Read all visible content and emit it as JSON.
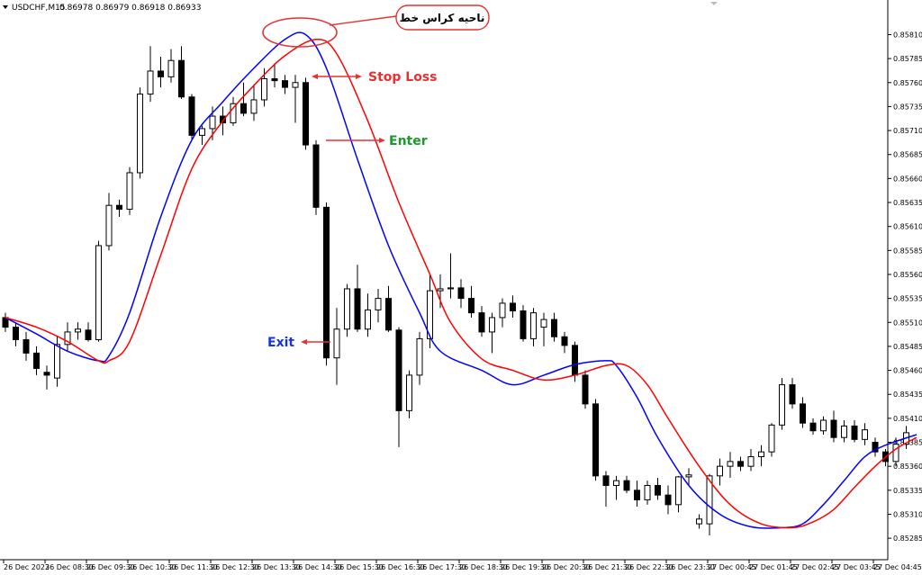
{
  "header": {
    "symbol": "USDCHF,M15",
    "ohlc": "0.86978 0.86979 0.86918 0.86933"
  },
  "colors": {
    "background": "#ffffff",
    "fast_ma": "#0000ff",
    "slow_ma": "#ff0000",
    "bull_candle_body": "#ffffff",
    "bear_candle_body": "#000000",
    "candle_outline": "#000000",
    "stop_loss": "#e83030",
    "enter": "#1a9a2a",
    "exit": "#1836d8",
    "annotation_arrow": "#e83030",
    "bubble_fill": "#ffffff",
    "bubble_border": "#e83030"
  },
  "annotations": {
    "crossover_zone": "ناحیه کراس خط",
    "stop_loss": "Stop Loss",
    "enter": "Enter",
    "exit": "Exit"
  },
  "chart_data": {
    "type": "candlestick",
    "ylim": [
      0.85272,
      0.85832
    ],
    "y_ticks": [
      "0.85810",
      "0.85785",
      "0.85760",
      "0.85735",
      "0.85710",
      "0.85685",
      "0.85660",
      "0.85635",
      "0.85610",
      "0.85585",
      "0.85560",
      "0.85535",
      "0.85510",
      "0.85485",
      "0.85460",
      "0.85435",
      "0.85410",
      "0.85385",
      "0.85360",
      "0.85335",
      "0.85310",
      "0.85285"
    ],
    "x_ticks": [
      "26 Dec 2023",
      "26 Dec 08:30",
      "26 Dec 09:30",
      "26 Dec 10:30",
      "26 Dec 11:30",
      "26 Dec 12:30",
      "26 Dec 13:30",
      "26 Dec 14:30",
      "26 Dec 15:30",
      "26 Dec 16:30",
      "26 Dec 17:30",
      "26 Dec 18:30",
      "26 Dec 19:30",
      "26 Dec 20:30",
      "26 Dec 21:30",
      "26 Dec 22:30",
      "26 Dec 23:30",
      "27 Dec 00:45",
      "27 Dec 01:45",
      "27 Dec 02:45",
      "27 Dec 03:45",
      "27 Dec 04:45"
    ],
    "candles": [
      {
        "o": 0.85515,
        "h": 0.8552,
        "l": 0.855,
        "c": 0.85505
      },
      {
        "o": 0.85505,
        "h": 0.8551,
        "l": 0.85485,
        "c": 0.85492
      },
      {
        "o": 0.85492,
        "h": 0.855,
        "l": 0.8547,
        "c": 0.85478
      },
      {
        "o": 0.85478,
        "h": 0.85485,
        "l": 0.85455,
        "c": 0.85462
      },
      {
        "o": 0.85458,
        "h": 0.85465,
        "l": 0.8544,
        "c": 0.85455
      },
      {
        "o": 0.85452,
        "h": 0.85495,
        "l": 0.85443,
        "c": 0.85487
      },
      {
        "o": 0.85487,
        "h": 0.8551,
        "l": 0.8548,
        "c": 0.855
      },
      {
        "o": 0.855,
        "h": 0.8551,
        "l": 0.85492,
        "c": 0.85503
      },
      {
        "o": 0.85502,
        "h": 0.8551,
        "l": 0.8549,
        "c": 0.85492
      },
      {
        "o": 0.85492,
        "h": 0.85595,
        "l": 0.8549,
        "c": 0.8559
      },
      {
        "o": 0.8559,
        "h": 0.85645,
        "l": 0.85585,
        "c": 0.85632
      },
      {
        "o": 0.85632,
        "h": 0.85638,
        "l": 0.8562,
        "c": 0.85628
      },
      {
        "o": 0.85628,
        "h": 0.85672,
        "l": 0.85622,
        "c": 0.85666
      },
      {
        "o": 0.85666,
        "h": 0.85755,
        "l": 0.8566,
        "c": 0.85748
      },
      {
        "o": 0.85748,
        "h": 0.85798,
        "l": 0.8574,
        "c": 0.85772
      },
      {
        "o": 0.85772,
        "h": 0.85787,
        "l": 0.85755,
        "c": 0.85766
      },
      {
        "o": 0.85766,
        "h": 0.85795,
        "l": 0.8576,
        "c": 0.85783
      },
      {
        "o": 0.85783,
        "h": 0.85798,
        "l": 0.85743,
        "c": 0.85745
      },
      {
        "o": 0.85745,
        "h": 0.85748,
        "l": 0.857,
        "c": 0.85705
      },
      {
        "o": 0.85705,
        "h": 0.85715,
        "l": 0.85695,
        "c": 0.85712
      },
      {
        "o": 0.85712,
        "h": 0.85735,
        "l": 0.857,
        "c": 0.85725
      },
      {
        "o": 0.85725,
        "h": 0.85735,
        "l": 0.85705,
        "c": 0.85718
      },
      {
        "o": 0.85718,
        "h": 0.85745,
        "l": 0.85715,
        "c": 0.85738
      },
      {
        "o": 0.85738,
        "h": 0.8576,
        "l": 0.85725,
        "c": 0.85728
      },
      {
        "o": 0.85728,
        "h": 0.85758,
        "l": 0.8572,
        "c": 0.85742
      },
      {
        "o": 0.85742,
        "h": 0.85775,
        "l": 0.85735,
        "c": 0.85764
      },
      {
        "o": 0.85764,
        "h": 0.8578,
        "l": 0.85755,
        "c": 0.85762
      },
      {
        "o": 0.85762,
        "h": 0.85768,
        "l": 0.85748,
        "c": 0.85755
      },
      {
        "o": 0.85755,
        "h": 0.85768,
        "l": 0.85718,
        "c": 0.8576
      },
      {
        "o": 0.8576,
        "h": 0.85765,
        "l": 0.8569,
        "c": 0.85695
      },
      {
        "o": 0.85695,
        "h": 0.857,
        "l": 0.85622,
        "c": 0.8563
      },
      {
        "o": 0.8563,
        "h": 0.85635,
        "l": 0.85465,
        "c": 0.85473
      },
      {
        "o": 0.85473,
        "h": 0.85525,
        "l": 0.85445,
        "c": 0.85503
      },
      {
        "o": 0.85503,
        "h": 0.8555,
        "l": 0.85495,
        "c": 0.85545
      },
      {
        "o": 0.85545,
        "h": 0.8557,
        "l": 0.855,
        "c": 0.85503
      },
      {
        "o": 0.85503,
        "h": 0.8554,
        "l": 0.85495,
        "c": 0.85523
      },
      {
        "o": 0.85523,
        "h": 0.85545,
        "l": 0.8551,
        "c": 0.85535
      },
      {
        "o": 0.85535,
        "h": 0.85548,
        "l": 0.855,
        "c": 0.85502
      },
      {
        "o": 0.85502,
        "h": 0.85505,
        "l": 0.8538,
        "c": 0.85418
      },
      {
        "o": 0.85418,
        "h": 0.8546,
        "l": 0.8541,
        "c": 0.85455
      },
      {
        "o": 0.85455,
        "h": 0.855,
        "l": 0.85445,
        "c": 0.85493
      },
      {
        "o": 0.85493,
        "h": 0.8556,
        "l": 0.85483,
        "c": 0.85543
      },
      {
        "o": 0.85543,
        "h": 0.8556,
        "l": 0.85525,
        "c": 0.85545
      },
      {
        "o": 0.85545,
        "h": 0.85582,
        "l": 0.85535,
        "c": 0.85546
      },
      {
        "o": 0.85546,
        "h": 0.85555,
        "l": 0.85525,
        "c": 0.85535
      },
      {
        "o": 0.85535,
        "h": 0.85548,
        "l": 0.85515,
        "c": 0.8552
      },
      {
        "o": 0.8552,
        "h": 0.85527,
        "l": 0.85495,
        "c": 0.855
      },
      {
        "o": 0.855,
        "h": 0.8552,
        "l": 0.85478,
        "c": 0.85515
      },
      {
        "o": 0.85515,
        "h": 0.85535,
        "l": 0.85505,
        "c": 0.8553
      },
      {
        "o": 0.8553,
        "h": 0.85538,
        "l": 0.85515,
        "c": 0.85522
      },
      {
        "o": 0.85522,
        "h": 0.85528,
        "l": 0.8549,
        "c": 0.85493
      },
      {
        "o": 0.85493,
        "h": 0.85525,
        "l": 0.85485,
        "c": 0.8552
      },
      {
        "o": 0.85505,
        "h": 0.8552,
        "l": 0.85485,
        "c": 0.85513
      },
      {
        "o": 0.85513,
        "h": 0.8552,
        "l": 0.8549,
        "c": 0.85495
      },
      {
        "o": 0.85495,
        "h": 0.855,
        "l": 0.85478,
        "c": 0.85486
      },
      {
        "o": 0.85486,
        "h": 0.8549,
        "l": 0.85448,
        "c": 0.85455
      },
      {
        "o": 0.85455,
        "h": 0.8546,
        "l": 0.8542,
        "c": 0.85425
      },
      {
        "o": 0.85425,
        "h": 0.8543,
        "l": 0.85345,
        "c": 0.8535
      },
      {
        "o": 0.8535,
        "h": 0.85355,
        "l": 0.85318,
        "c": 0.8534
      },
      {
        "o": 0.8534,
        "h": 0.8535,
        "l": 0.85325,
        "c": 0.85345
      },
      {
        "o": 0.85345,
        "h": 0.8535,
        "l": 0.85332,
        "c": 0.85335
      },
      {
        "o": 0.85335,
        "h": 0.85345,
        "l": 0.85318,
        "c": 0.85325
      },
      {
        "o": 0.85325,
        "h": 0.85345,
        "l": 0.8532,
        "c": 0.8534
      },
      {
        "o": 0.8534,
        "h": 0.85348,
        "l": 0.85325,
        "c": 0.8533
      },
      {
        "o": 0.8533,
        "h": 0.8534,
        "l": 0.8531,
        "c": 0.8532
      },
      {
        "o": 0.8532,
        "h": 0.8535,
        "l": 0.85312,
        "c": 0.85349
      },
      {
        "o": 0.85349,
        "h": 0.85358,
        "l": 0.8534,
        "c": 0.85351
      },
      {
        "o": 0.853,
        "h": 0.8531,
        "l": 0.85295,
        "c": 0.85305
      },
      {
        "o": 0.853,
        "h": 0.85352,
        "l": 0.85288,
        "c": 0.8535
      },
      {
        "o": 0.8535,
        "h": 0.85368,
        "l": 0.8534,
        "c": 0.8536
      },
      {
        "o": 0.8536,
        "h": 0.85375,
        "l": 0.85348,
        "c": 0.85365
      },
      {
        "o": 0.85365,
        "h": 0.8537,
        "l": 0.85355,
        "c": 0.8536
      },
      {
        "o": 0.8536,
        "h": 0.85378,
        "l": 0.85355,
        "c": 0.8537
      },
      {
        "o": 0.8537,
        "h": 0.85382,
        "l": 0.8536,
        "c": 0.85375
      },
      {
        "o": 0.85375,
        "h": 0.85405,
        "l": 0.8537,
        "c": 0.85403
      },
      {
        "o": 0.85403,
        "h": 0.85452,
        "l": 0.85398,
        "c": 0.85445
      },
      {
        "o": 0.85445,
        "h": 0.85452,
        "l": 0.8542,
        "c": 0.85425
      },
      {
        "o": 0.85425,
        "h": 0.85432,
        "l": 0.854,
        "c": 0.85405
      },
      {
        "o": 0.85405,
        "h": 0.8541,
        "l": 0.85393,
        "c": 0.85397
      },
      {
        "o": 0.85397,
        "h": 0.85412,
        "l": 0.85393,
        "c": 0.85408
      },
      {
        "o": 0.85408,
        "h": 0.85418,
        "l": 0.85385,
        "c": 0.8539
      },
      {
        "o": 0.8539,
        "h": 0.85408,
        "l": 0.85385,
        "c": 0.85402
      },
      {
        "o": 0.85402,
        "h": 0.85408,
        "l": 0.85385,
        "c": 0.85388
      },
      {
        "o": 0.85388,
        "h": 0.85405,
        "l": 0.85382,
        "c": 0.85398
      },
      {
        "o": 0.85385,
        "h": 0.8539,
        "l": 0.8537,
        "c": 0.85375
      },
      {
        "o": 0.85375,
        "h": 0.85378,
        "l": 0.8536,
        "c": 0.85365
      },
      {
        "o": 0.85365,
        "h": 0.8539,
        "l": 0.8536,
        "c": 0.85383
      },
      {
        "o": 0.85383,
        "h": 0.85402,
        "l": 0.85378,
        "c": 0.85395
      }
    ],
    "series": [
      {
        "color_key": "fast_ma",
        "values": [
          [
            0,
            0.85515
          ],
          [
            3,
            0.85498
          ],
          [
            6,
            0.8548
          ],
          [
            9,
            0.8547
          ],
          [
            10,
            0.85475
          ],
          [
            12,
            0.8552
          ],
          [
            15,
            0.8562
          ],
          [
            18,
            0.857
          ],
          [
            21,
            0.8574
          ],
          [
            24,
            0.85775
          ],
          [
            27,
            0.85805
          ],
          [
            29,
            0.8581
          ],
          [
            31,
            0.85775
          ],
          [
            34,
            0.8568
          ],
          [
            37,
            0.8559
          ],
          [
            40,
            0.8552
          ],
          [
            42,
            0.8548
          ],
          [
            46,
            0.8546
          ],
          [
            49,
            0.85445
          ],
          [
            52,
            0.85455
          ],
          [
            55,
            0.85466
          ],
          [
            58,
            0.8547
          ],
          [
            59,
            0.85465
          ],
          [
            61,
            0.85432
          ],
          [
            63,
            0.8539
          ],
          [
            66,
            0.8534
          ],
          [
            69,
            0.8531
          ],
          [
            72,
            0.85297
          ],
          [
            75,
            0.85296
          ],
          [
            77,
            0.853
          ],
          [
            79,
            0.8532
          ],
          [
            81,
            0.85345
          ],
          [
            83,
            0.8537
          ],
          [
            85,
            0.85382
          ],
          [
            88,
            0.85393
          ]
        ]
      },
      {
        "color_key": "slow_ma",
        "values": [
          [
            0,
            0.85515
          ],
          [
            3,
            0.85505
          ],
          [
            6,
            0.8549
          ],
          [
            9,
            0.8547
          ],
          [
            10,
            0.8547
          ],
          [
            12,
            0.8549
          ],
          [
            15,
            0.8558
          ],
          [
            18,
            0.8567
          ],
          [
            21,
            0.8572
          ],
          [
            24,
            0.85757
          ],
          [
            27,
            0.85788
          ],
          [
            30,
            0.85805
          ],
          [
            32,
            0.8579
          ],
          [
            35,
            0.8572
          ],
          [
            38,
            0.85635
          ],
          [
            41,
            0.8556
          ],
          [
            43,
            0.8551
          ],
          [
            46,
            0.85472
          ],
          [
            49,
            0.8546
          ],
          [
            52,
            0.8545
          ],
          [
            55,
            0.85455
          ],
          [
            58,
            0.85465
          ],
          [
            60,
            0.85465
          ],
          [
            62,
            0.85445
          ],
          [
            64,
            0.8541
          ],
          [
            67,
            0.8536
          ],
          [
            70,
            0.8532
          ],
          [
            73,
            0.853
          ],
          [
            76,
            0.85296
          ],
          [
            78,
            0.85302
          ],
          [
            80,
            0.85315
          ],
          [
            82,
            0.85338
          ],
          [
            84,
            0.8536
          ],
          [
            86,
            0.85378
          ],
          [
            88,
            0.8539
          ]
        ]
      }
    ],
    "grid": false
  }
}
